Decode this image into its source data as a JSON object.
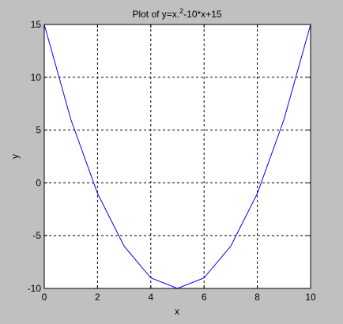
{
  "chart_data": {
    "type": "line",
    "title": {
      "prefix": "Plot of y=x.",
      "superscript": "2",
      "suffix": "-10*x+15"
    },
    "xlabel": "x",
    "ylabel": "y",
    "xlim": [
      0,
      10
    ],
    "ylim": [
      -10,
      15
    ],
    "xticks": [
      "0",
      "2",
      "4",
      "6",
      "8",
      "10"
    ],
    "yticks": [
      "15",
      "10",
      "5",
      "0",
      "-5",
      "-10"
    ],
    "grid": true,
    "grid_style": "dashed",
    "series": [
      {
        "color": "#0000ff",
        "x": [
          0,
          1,
          2,
          3,
          4,
          5,
          6,
          7,
          8,
          9,
          10
        ],
        "y": [
          15,
          6,
          -1,
          -6,
          -9,
          -10,
          -9,
          -6,
          -1,
          6,
          15
        ]
      }
    ]
  },
  "colors": {
    "figure_background": "#c0c0c0",
    "axes_background": "#ffffff",
    "line": "#0000ff",
    "grid": "#000000"
  }
}
